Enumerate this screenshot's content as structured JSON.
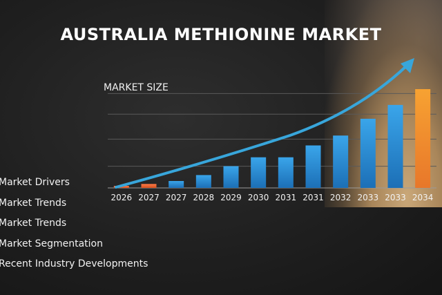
{
  "header": {
    "title": "AUSTRALIA METHIONINE MARKET",
    "subtitle": "MARKET SIZE"
  },
  "sidebar": {
    "items": [
      "Market Drivers",
      "Market Trends",
      "Market Trends",
      "Market Segmentation",
      "Recent Industry Developments"
    ]
  },
  "colors": {
    "accent_orange": "#e8623a",
    "bar_blue": "#2a8ed6",
    "bar_last_orange": "#f39a2c",
    "arrow_blue": "#38a6db"
  },
  "chart_data": {
    "type": "bar",
    "title": "MARKET SIZE",
    "xlabel": "",
    "ylabel": "",
    "ylim": [
      0,
      100
    ],
    "categories": [
      "2026",
      "2027",
      "2027",
      "2028",
      "2029",
      "2030",
      "2031",
      "2031",
      "2032",
      "2033",
      "2033",
      "2034"
    ],
    "values": [
      2,
      4,
      7,
      13,
      22,
      31,
      31,
      43,
      53,
      70,
      84,
      100
    ],
    "bar_colors": [
      "orange",
      "orange",
      "blue",
      "blue",
      "blue",
      "blue",
      "blue",
      "blue",
      "blue",
      "blue",
      "blue",
      "highlight"
    ],
    "trend_arrow": true,
    "grid": true
  }
}
